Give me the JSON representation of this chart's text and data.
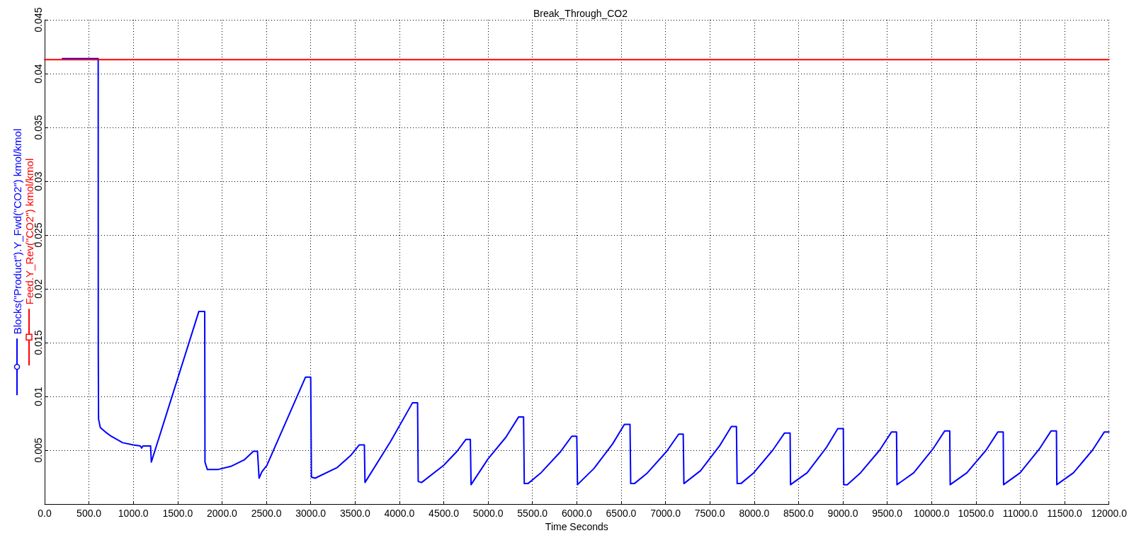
{
  "chart_data": {
    "type": "line",
    "title": "Break_Through_CO2",
    "xlabel": "Time Seconds",
    "xlim": [
      0,
      12000
    ],
    "xticks": [
      {
        "value": 0,
        "label": "0.0"
      },
      {
        "value": 500,
        "label": "500.0"
      },
      {
        "value": 1000,
        "label": "1000.0"
      },
      {
        "value": 1500,
        "label": "1500.0"
      },
      {
        "value": 2000,
        "label": "2000.0"
      },
      {
        "value": 2500,
        "label": "2500.0"
      },
      {
        "value": 3000,
        "label": "3000.0"
      },
      {
        "value": 3500,
        "label": "3500.0"
      },
      {
        "value": 4000,
        "label": "4000.0"
      },
      {
        "value": 4500,
        "label": "4500.0"
      },
      {
        "value": 5000,
        "label": "5000.0"
      },
      {
        "value": 5500,
        "label": "5500.0"
      },
      {
        "value": 6000,
        "label": "6000.0"
      },
      {
        "value": 6500,
        "label": "6500.0"
      },
      {
        "value": 7000,
        "label": "7000.0"
      },
      {
        "value": 7500,
        "label": "7500.0"
      },
      {
        "value": 8000,
        "label": "8000.0"
      },
      {
        "value": 8500,
        "label": "8500.0"
      },
      {
        "value": 9000,
        "label": "9000.0"
      },
      {
        "value": 9500,
        "label": "9500.0"
      },
      {
        "value": 10000,
        "label": "10000.0"
      },
      {
        "value": 10500,
        "label": "10500.0"
      },
      {
        "value": 11000,
        "label": "11000.0"
      },
      {
        "value": 11500,
        "label": "11500.0"
      },
      {
        "value": 12000,
        "label": "12000.0"
      }
    ],
    "ylim": [
      0,
      0.045
    ],
    "yticks": [
      {
        "value": 0,
        "label": null
      },
      0.005,
      0.01,
      0.015,
      0.02,
      0.025,
      0.03,
      0.035,
      0.04,
      0.045
    ],
    "grid": true,
    "legend": "left",
    "series": [
      {
        "name": "Blocks(\"Product\").Y_Fwd(\"CO2\") kmol/kmol",
        "color": "#0000ff",
        "x": [
          200,
          604,
          605,
          608,
          628,
          700,
          750,
          880,
          1000,
          1080,
          1094,
          1110,
          1195,
          1203,
          1739,
          1805,
          1808,
          1835,
          1950,
          2100,
          2250,
          2354,
          2400,
          2418,
          2450,
          2506,
          2942,
          3000,
          3008,
          3050,
          3300,
          3450,
          3548,
          3605,
          3612,
          3900,
          4147,
          4205,
          4212,
          4250,
          4500,
          4650,
          4749,
          4800,
          4808,
          5000,
          5200,
          5345,
          5400,
          5408,
          5450,
          5596,
          5810,
          5944,
          6000,
          6008,
          6193,
          6405,
          6537,
          6600,
          6608,
          6650,
          6797,
          7014,
          7149,
          7200,
          7208,
          7395,
          7609,
          7743,
          7800,
          7808,
          7850,
          7995,
          8209,
          8343,
          8405,
          8410,
          8597,
          8810,
          8943,
          9005,
          9010,
          9050,
          9199,
          9414,
          9549,
          9605,
          9610,
          9799,
          10014,
          10149,
          10205,
          10210,
          10398,
          10614,
          10748,
          10808,
          10812,
          10999,
          11214,
          11348,
          11408,
          11412,
          11600,
          11814,
          11948,
          12000
        ],
        "values": [
          0.0414,
          0.0414,
          0.0141,
          0.0079,
          0.0071,
          0.0066,
          0.0063,
          0.0057,
          0.0055,
          0.0054,
          0.0052,
          0.0054,
          0.0054,
          0.0039,
          0.0179,
          0.0179,
          0.0039,
          0.0032,
          0.0032,
          0.0035,
          0.0041,
          0.0049,
          0.0049,
          0.0024,
          0.003,
          0.0036,
          0.0118,
          0.0118,
          0.0025,
          0.0024,
          0.0034,
          0.0045,
          0.0055,
          0.0055,
          0.002,
          0.0058,
          0.0094,
          0.0094,
          0.0021,
          0.002,
          0.0036,
          0.0049,
          0.006,
          0.006,
          0.0018,
          0.0042,
          0.0062,
          0.0081,
          0.0081,
          0.0019,
          0.0019,
          0.0029,
          0.0048,
          0.0063,
          0.0063,
          0.0018,
          0.0033,
          0.0056,
          0.0074,
          0.0074,
          0.0019,
          0.0019,
          0.0029,
          0.0049,
          0.0065,
          0.0065,
          0.0019,
          0.0031,
          0.0054,
          0.0072,
          0.0072,
          0.0019,
          0.0019,
          0.0029,
          0.005,
          0.0066,
          0.0066,
          0.0018,
          0.0029,
          0.0052,
          0.007,
          0.007,
          0.0018,
          0.0018,
          0.0029,
          0.005,
          0.0067,
          0.0067,
          0.0018,
          0.0029,
          0.0051,
          0.0068,
          0.0068,
          0.0018,
          0.0029,
          0.005,
          0.0067,
          0.0067,
          0.0018,
          0.0029,
          0.0051,
          0.0068,
          0.0068,
          0.0018,
          0.0029,
          0.005,
          0.0067,
          0.0067
        ]
      },
      {
        "name": "Feed.Y_Rev(\"CO2\") kmol/kmol",
        "color": "#ff0000",
        "x": [
          0,
          12000
        ],
        "values": [
          0.0413,
          0.0413
        ]
      }
    ]
  }
}
